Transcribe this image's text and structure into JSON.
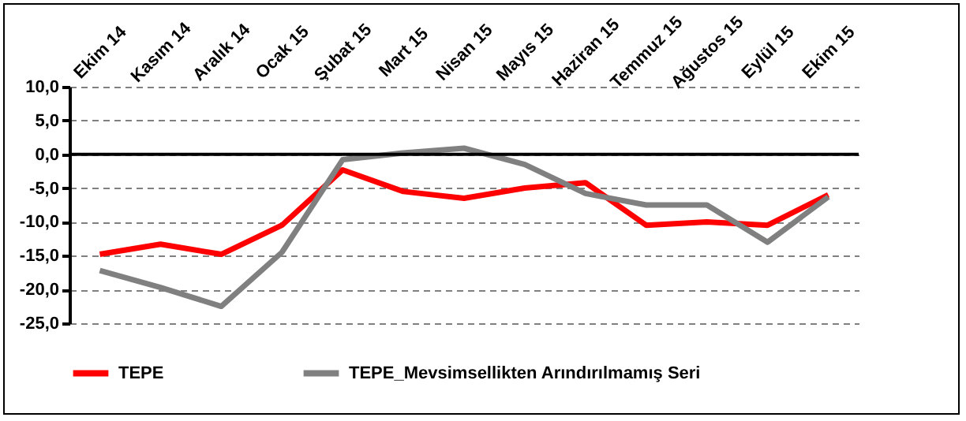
{
  "chart_data": {
    "type": "line",
    "categories": [
      "Ekim 14",
      "Kasım 14",
      "Aralık 14",
      "Ocak 15",
      "Şubat 15",
      "Mart 15",
      "Nisan 15",
      "Mayıs 15",
      "Haziran 15",
      "Temmuz 15",
      "Ağustos 15",
      "Eylül 15",
      "Ekim 15"
    ],
    "series": [
      {
        "name": "TEPE",
        "color": "#ff0000",
        "values": [
          -14.8,
          -13.3,
          -14.8,
          -10.5,
          -2.3,
          -5.5,
          -6.5,
          -5.0,
          -4.2,
          -10.5,
          -10.0,
          -10.5,
          -6.0
        ]
      },
      {
        "name": "TEPE_Mevsimsellikten  Arındırılmamış Seri",
        "color": "#808080",
        "values": [
          -17.2,
          -19.7,
          -22.5,
          -14.5,
          -0.8,
          0.2,
          0.9,
          -1.5,
          -5.8,
          -7.5,
          -7.5,
          -13.0,
          -6.3
        ]
      }
    ],
    "ylim": [
      -25,
      10
    ],
    "yticks": [
      {
        "value": 10,
        "label": "10,0"
      },
      {
        "value": 5,
        "label": "5,0"
      },
      {
        "value": 0,
        "label": "0,0"
      },
      {
        "value": -5,
        "label": "-5,0"
      },
      {
        "value": -10,
        "label": "-10,0"
      },
      {
        "value": -15,
        "label": "-15,0"
      },
      {
        "value": -20,
        "label": "-20,0"
      },
      {
        "value": -25,
        "label": "-25,0"
      }
    ],
    "ref_lines": [
      {
        "axis": "y",
        "value": 0,
        "color": "#000000"
      }
    ],
    "grid": "y",
    "legend": "bottom",
    "marker": "none",
    "line_style": "solid"
  }
}
